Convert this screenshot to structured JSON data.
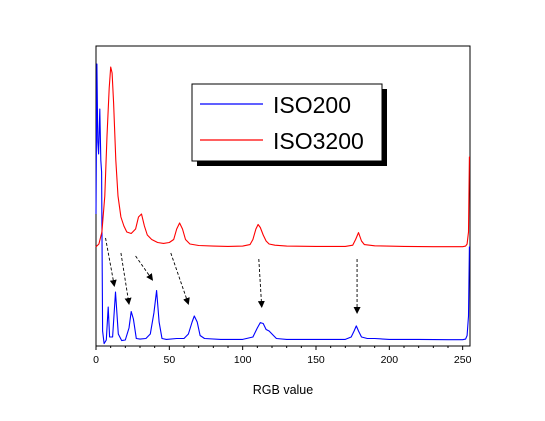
{
  "chart_data": {
    "type": "line",
    "title": "",
    "xlabel": "RGB value",
    "ylabel": "",
    "xlim": [
      0,
      255
    ],
    "ylim": [
      0,
      100
    ],
    "x_ticks": [
      0,
      50,
      100,
      150,
      200,
      250
    ],
    "y_ticks_labeled": false,
    "grid": false,
    "legend_position": "top-right",
    "series": [
      {
        "name": "ISO200",
        "color": "#0000ff",
        "points": [
          [
            0,
            44
          ],
          [
            0.6,
            94
          ],
          [
            1.2,
            68
          ],
          [
            1.8,
            64
          ],
          [
            2.6,
            79
          ],
          [
            3.3,
            62
          ],
          [
            3.8,
            58
          ],
          [
            4.5,
            5
          ],
          [
            5.5,
            0.8
          ],
          [
            7,
            2
          ],
          [
            8.3,
            13
          ],
          [
            9.3,
            3
          ],
          [
            11.3,
            3
          ],
          [
            13.3,
            18
          ],
          [
            15.2,
            4
          ],
          [
            17.5,
            1.8
          ],
          [
            20,
            2
          ],
          [
            22.5,
            6
          ],
          [
            24,
            11.5
          ],
          [
            25.5,
            9
          ],
          [
            27.5,
            2.5
          ],
          [
            30,
            2.3
          ],
          [
            34,
            2.5
          ],
          [
            37,
            4
          ],
          [
            39.5,
            11
          ],
          [
            41.3,
            18.5
          ],
          [
            43,
            8
          ],
          [
            45,
            2.5
          ],
          [
            48,
            2.2
          ],
          [
            55,
            2.5
          ],
          [
            60,
            2.5
          ],
          [
            63,
            4
          ],
          [
            65.5,
            8
          ],
          [
            67,
            10
          ],
          [
            69,
            8
          ],
          [
            71,
            3.5
          ],
          [
            74,
            2.5
          ],
          [
            85,
            2.2
          ],
          [
            100,
            2.2
          ],
          [
            107,
            3
          ],
          [
            110,
            6
          ],
          [
            112,
            7.8
          ],
          [
            114,
            7.5
          ],
          [
            116,
            5.5
          ],
          [
            118,
            5
          ],
          [
            120,
            4
          ],
          [
            123,
            2.5
          ],
          [
            130,
            2.2
          ],
          [
            150,
            2.2
          ],
          [
            170,
            2.2
          ],
          [
            174,
            3
          ],
          [
            176,
            5
          ],
          [
            177.5,
            6.7
          ],
          [
            179,
            5
          ],
          [
            181,
            3
          ],
          [
            185,
            2.5
          ],
          [
            190,
            2.5
          ],
          [
            200,
            2.2
          ],
          [
            220,
            2.2
          ],
          [
            240,
            2.1
          ],
          [
            250,
            2.1
          ],
          [
            252,
            2.3
          ],
          [
            253,
            3.5
          ],
          [
            254,
            10
          ],
          [
            254.6,
            33
          ],
          [
            255,
            33
          ]
        ]
      },
      {
        "name": "ISO3200",
        "color": "#ff0000",
        "points": [
          [
            0,
            33
          ],
          [
            0.5,
            33.3
          ],
          [
            2,
            34
          ],
          [
            4,
            38
          ],
          [
            6,
            50
          ],
          [
            7.5,
            70
          ],
          [
            9,
            86
          ],
          [
            10,
            93
          ],
          [
            11,
            91
          ],
          [
            12,
            81
          ],
          [
            13.5,
            62
          ],
          [
            15,
            50
          ],
          [
            17,
            43
          ],
          [
            19,
            40
          ],
          [
            21,
            38
          ],
          [
            24,
            37.5
          ],
          [
            27,
            39
          ],
          [
            29,
            43
          ],
          [
            31,
            44
          ],
          [
            33,
            40
          ],
          [
            35,
            37
          ],
          [
            38,
            35.5
          ],
          [
            42,
            34.5
          ],
          [
            46,
            34.2
          ],
          [
            50,
            34.5
          ],
          [
            53,
            35.5
          ],
          [
            55,
            39
          ],
          [
            57,
            41
          ],
          [
            59,
            39
          ],
          [
            61,
            35.5
          ],
          [
            64,
            34
          ],
          [
            70,
            33.5
          ],
          [
            80,
            33.3
          ],
          [
            90,
            33.2
          ],
          [
            100,
            33.3
          ],
          [
            105,
            33.8
          ],
          [
            107,
            35.5
          ],
          [
            109,
            39
          ],
          [
            110.5,
            40.5
          ],
          [
            112,
            39.5
          ],
          [
            114,
            37
          ],
          [
            116,
            35
          ],
          [
            118,
            34
          ],
          [
            122,
            33.6
          ],
          [
            130,
            33.3
          ],
          [
            150,
            33.2
          ],
          [
            170,
            33.2
          ],
          [
            175,
            33.6
          ],
          [
            177,
            35.5
          ],
          [
            179,
            37.8
          ],
          [
            181,
            35
          ],
          [
            183,
            33.8
          ],
          [
            190,
            33.4
          ],
          [
            210,
            33.2
          ],
          [
            230,
            33.1
          ],
          [
            250,
            33.1
          ],
          [
            252,
            33.3
          ],
          [
            253,
            34
          ],
          [
            254,
            38
          ],
          [
            254.6,
            63
          ],
          [
            255,
            63
          ]
        ]
      }
    ],
    "annotations": [
      {
        "type": "arrow",
        "style": "dashed",
        "from": [
          6.5,
          36
        ],
        "to": [
          12.5,
          20
        ]
      },
      {
        "type": "arrow",
        "style": "dashed",
        "from": [
          17,
          31
        ],
        "to": [
          22.5,
          14
        ]
      },
      {
        "type": "arrow",
        "style": "dashed",
        "from": [
          27,
          30
        ],
        "to": [
          38.5,
          22
        ]
      },
      {
        "type": "arrow",
        "style": "dashed",
        "from": [
          51,
          31
        ],
        "to": [
          63,
          14
        ]
      },
      {
        "type": "arrow",
        "style": "dashed",
        "from": [
          111,
          29
        ],
        "to": [
          113,
          13
        ]
      },
      {
        "type": "arrow",
        "style": "dashed",
        "from": [
          178,
          29
        ],
        "to": [
          178,
          11
        ]
      }
    ]
  }
}
